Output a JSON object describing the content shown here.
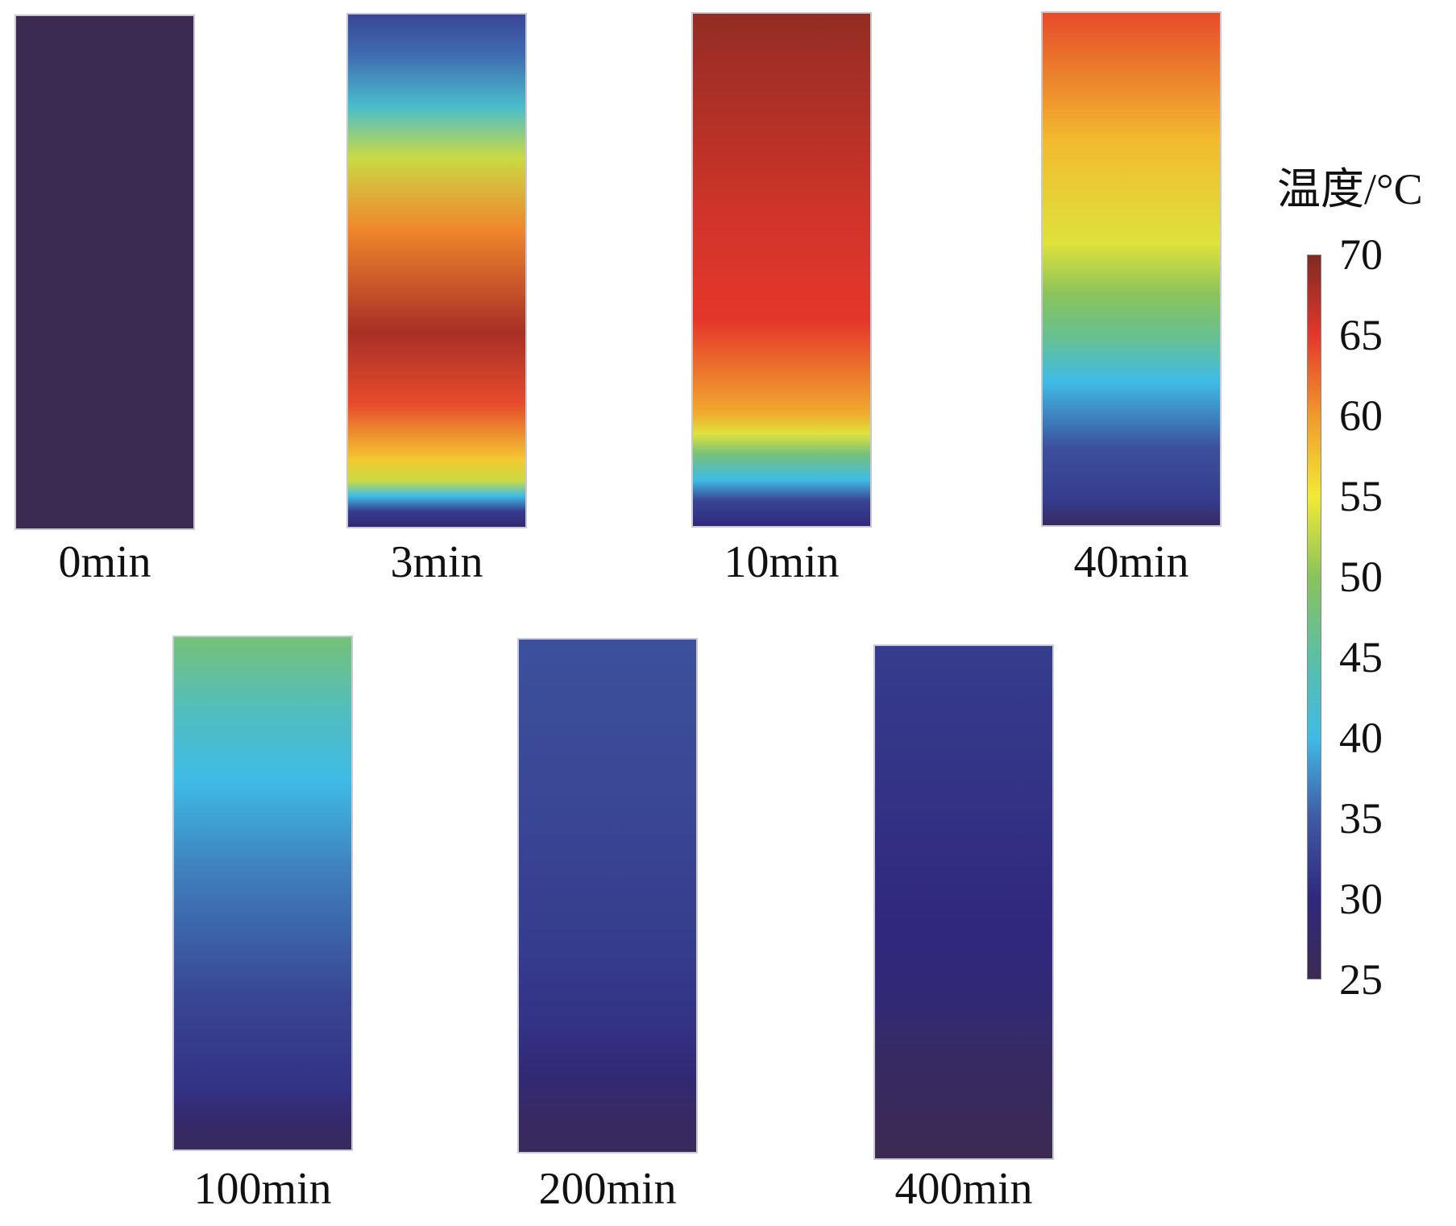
{
  "chart_data": {
    "type": "heatmap",
    "colorbar": {
      "title": "温度/°C",
      "ticks": [
        "70",
        "65",
        "60",
        "55",
        "50",
        "45",
        "40",
        "35",
        "30",
        "25"
      ],
      "range": [
        25,
        70
      ],
      "colormap": [
        {
          "t": 25,
          "color": "#3b2b52"
        },
        {
          "t": 30,
          "color": "#30287d"
        },
        {
          "t": 35,
          "color": "#3f5aa4"
        },
        {
          "t": 40,
          "color": "#3fbbe6"
        },
        {
          "t": 45,
          "color": "#5bbfa6"
        },
        {
          "t": 50,
          "color": "#8ac35b"
        },
        {
          "t": 55,
          "color": "#f3ea34"
        },
        {
          "t": 60,
          "color": "#f19a2c"
        },
        {
          "t": 65,
          "color": "#e5372b"
        },
        {
          "t": 70,
          "color": "#7f2a22"
        }
      ]
    },
    "panels": [
      {
        "label": "0min",
        "temps": [
          [
            0,
            25
          ],
          [
            100,
            25
          ]
        ]
      },
      {
        "label": "3min",
        "temps": [
          [
            0,
            33
          ],
          [
            8,
            36
          ],
          [
            18,
            42
          ],
          [
            28,
            53
          ],
          [
            42,
            61
          ],
          [
            62,
            68
          ],
          [
            76,
            64
          ],
          [
            87,
            57
          ],
          [
            91,
            53
          ],
          [
            94,
            40
          ],
          [
            97,
            32
          ],
          [
            100,
            29
          ]
        ]
      },
      {
        "label": "10min",
        "temps": [
          [
            0,
            69
          ],
          [
            40,
            66
          ],
          [
            60,
            65
          ],
          [
            78,
            59
          ],
          [
            82,
            54
          ],
          [
            86,
            48
          ],
          [
            91,
            40
          ],
          [
            95,
            33
          ],
          [
            100,
            30
          ]
        ]
      },
      {
        "label": "40min",
        "temps": [
          [
            0,
            64
          ],
          [
            25,
            58
          ],
          [
            45,
            54
          ],
          [
            55,
            50
          ],
          [
            64,
            46
          ],
          [
            72,
            40
          ],
          [
            85,
            34
          ],
          [
            95,
            32
          ],
          [
            100,
            27
          ]
        ]
      },
      {
        "label": "100min",
        "temps": [
          [
            0,
            48
          ],
          [
            15,
            43
          ],
          [
            28,
            40
          ],
          [
            45,
            37
          ],
          [
            70,
            33
          ],
          [
            88,
            31
          ],
          [
            94,
            28
          ],
          [
            100,
            26
          ]
        ]
      },
      {
        "label": "200min",
        "temps": [
          [
            0,
            34
          ],
          [
            35,
            33
          ],
          [
            60,
            32
          ],
          [
            75,
            31
          ],
          [
            85,
            29
          ],
          [
            93,
            27
          ],
          [
            100,
            26
          ]
        ]
      },
      {
        "label": "400min",
        "temps": [
          [
            0,
            32
          ],
          [
            30,
            31
          ],
          [
            55,
            30
          ],
          [
            70,
            29
          ],
          [
            80,
            27
          ],
          [
            90,
            26
          ],
          [
            100,
            25
          ]
        ]
      }
    ]
  }
}
